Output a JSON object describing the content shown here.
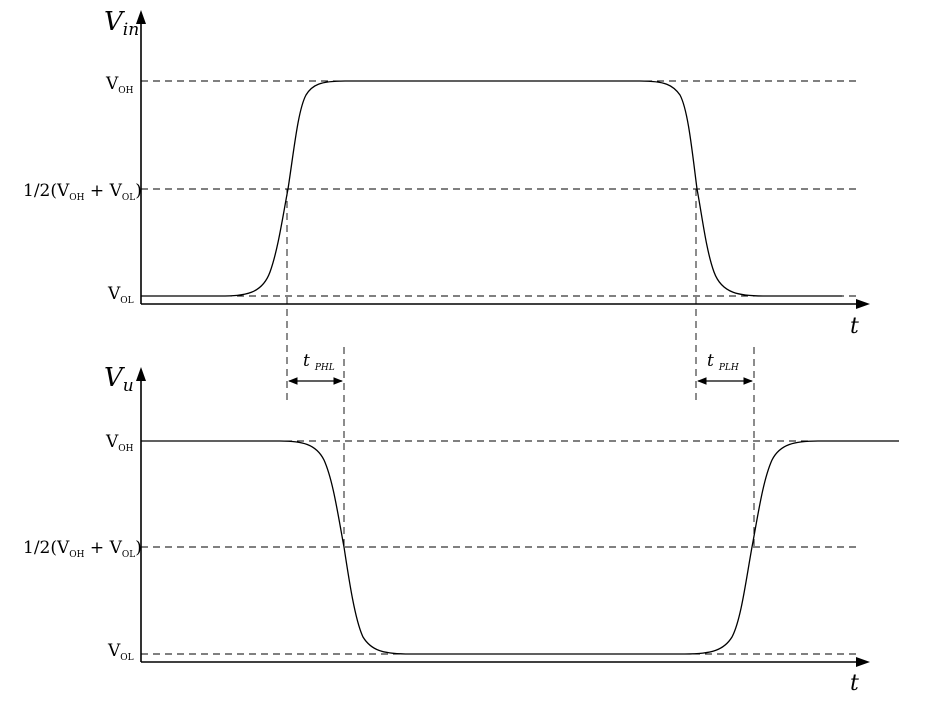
{
  "top_plot": {
    "y_axis_label": "V",
    "y_axis_label_sub": "in",
    "x_axis_label": "t",
    "levels": {
      "high": {
        "main": "V",
        "sub": "OH"
      },
      "mid": {
        "prefix": "1/2(",
        "a": "V",
        "a_sub": "OH",
        "plus": " + ",
        "b": "V",
        "b_sub": "OL",
        "suffix": ")"
      },
      "low": {
        "main": "V",
        "sub": "OL"
      }
    }
  },
  "bottom_plot": {
    "y_axis_label": "V",
    "y_axis_label_sub": "u",
    "x_axis_label": "t",
    "levels": {
      "high": {
        "main": "V",
        "sub": "OH"
      },
      "mid": {
        "prefix": "1/2(",
        "a": "V",
        "a_sub": "OH",
        "plus": " + ",
        "b": "V",
        "b_sub": "OL",
        "suffix": ")"
      },
      "low": {
        "main": "V",
        "sub": "OL"
      }
    }
  },
  "delays": {
    "high_to_low": {
      "main": "t",
      "sub": "PHL"
    },
    "low_to_high": {
      "main": "t",
      "sub": "PLH"
    }
  }
}
